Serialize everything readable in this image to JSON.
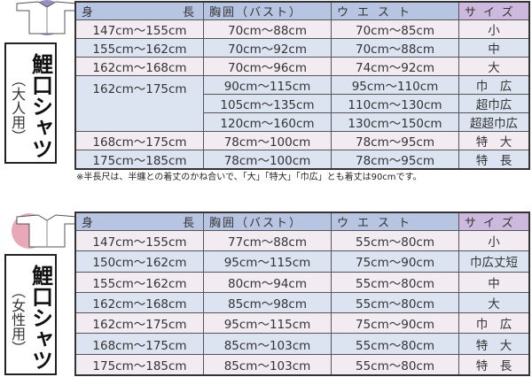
{
  "headers": {
    "height_l": "身",
    "height_r": "長",
    "chest": "胸囲（バスト）",
    "waist": "ウエスト",
    "size": "サイズ"
  },
  "adult": {
    "title": "鯉口シャツ",
    "subtitle": "（大人用）",
    "icon": "shirt-icon",
    "icon_color": "#9c8cc4",
    "rows": [
      {
        "height": "147cm〜155cm",
        "chest": "70cm〜88cm",
        "waist": "70cm〜85cm",
        "size": "小"
      },
      {
        "height": "155cm〜162cm",
        "chest": "70cm〜92cm",
        "waist": "70cm〜88cm",
        "size": "中"
      },
      {
        "height": "162cm〜168cm",
        "chest": "70cm〜96cm",
        "waist": "74cm〜92cm",
        "size": "大"
      },
      {
        "height": "162cm〜175cm",
        "chest": "90cm〜115cm",
        "waist": "95cm〜110cm",
        "size": "巾　広"
      },
      {
        "chest": "105cm〜135cm",
        "waist": "110cm〜130cm",
        "size": "超巾広"
      },
      {
        "chest": "120cm〜160cm",
        "waist": "130cm〜150cm",
        "size": "超超巾広"
      },
      {
        "height": "168cm〜175cm",
        "chest": "78cm〜100cm",
        "waist": "78cm〜95cm",
        "size": "特　大"
      },
      {
        "height": "175cm〜185cm",
        "chest": "78cm〜100cm",
        "waist": "78cm〜95cm",
        "size": "特　長"
      }
    ],
    "note": "※半長尺は、半纏との着丈のかね合いで、「大」「特大」「巾広」とも着丈は90cmです。"
  },
  "women": {
    "title": "鯉口シャツ",
    "subtitle": "（女性用）",
    "icon": "shirt-icon",
    "icon_color": "#e8a8b8",
    "rows": [
      {
        "height": "147cm〜155cm",
        "chest": "77cm〜88cm",
        "waist": "55cm〜80cm",
        "size": "小"
      },
      {
        "height": "150cm〜162cm",
        "chest": "95cm〜115cm",
        "waist": "75cm〜90cm",
        "size": "巾広丈短"
      },
      {
        "height": "155cm〜162cm",
        "chest": "80cm〜94cm",
        "waist": "55cm〜80cm",
        "size": "中"
      },
      {
        "height": "162cm〜168cm",
        "chest": "85cm〜98cm",
        "waist": "55cm〜80cm",
        "size": "大"
      },
      {
        "height": "162cm〜175cm",
        "chest": "95cm〜115cm",
        "waist": "75cm〜90cm",
        "size": "巾　広"
      },
      {
        "height": "168cm〜175cm",
        "chest": "85cm〜103cm",
        "waist": "55cm〜80cm",
        "size": "特　大"
      },
      {
        "height": "175cm〜185cm",
        "chest": "85cm〜103cm",
        "waist": "55cm〜80cm",
        "size": "特　長"
      }
    ]
  }
}
